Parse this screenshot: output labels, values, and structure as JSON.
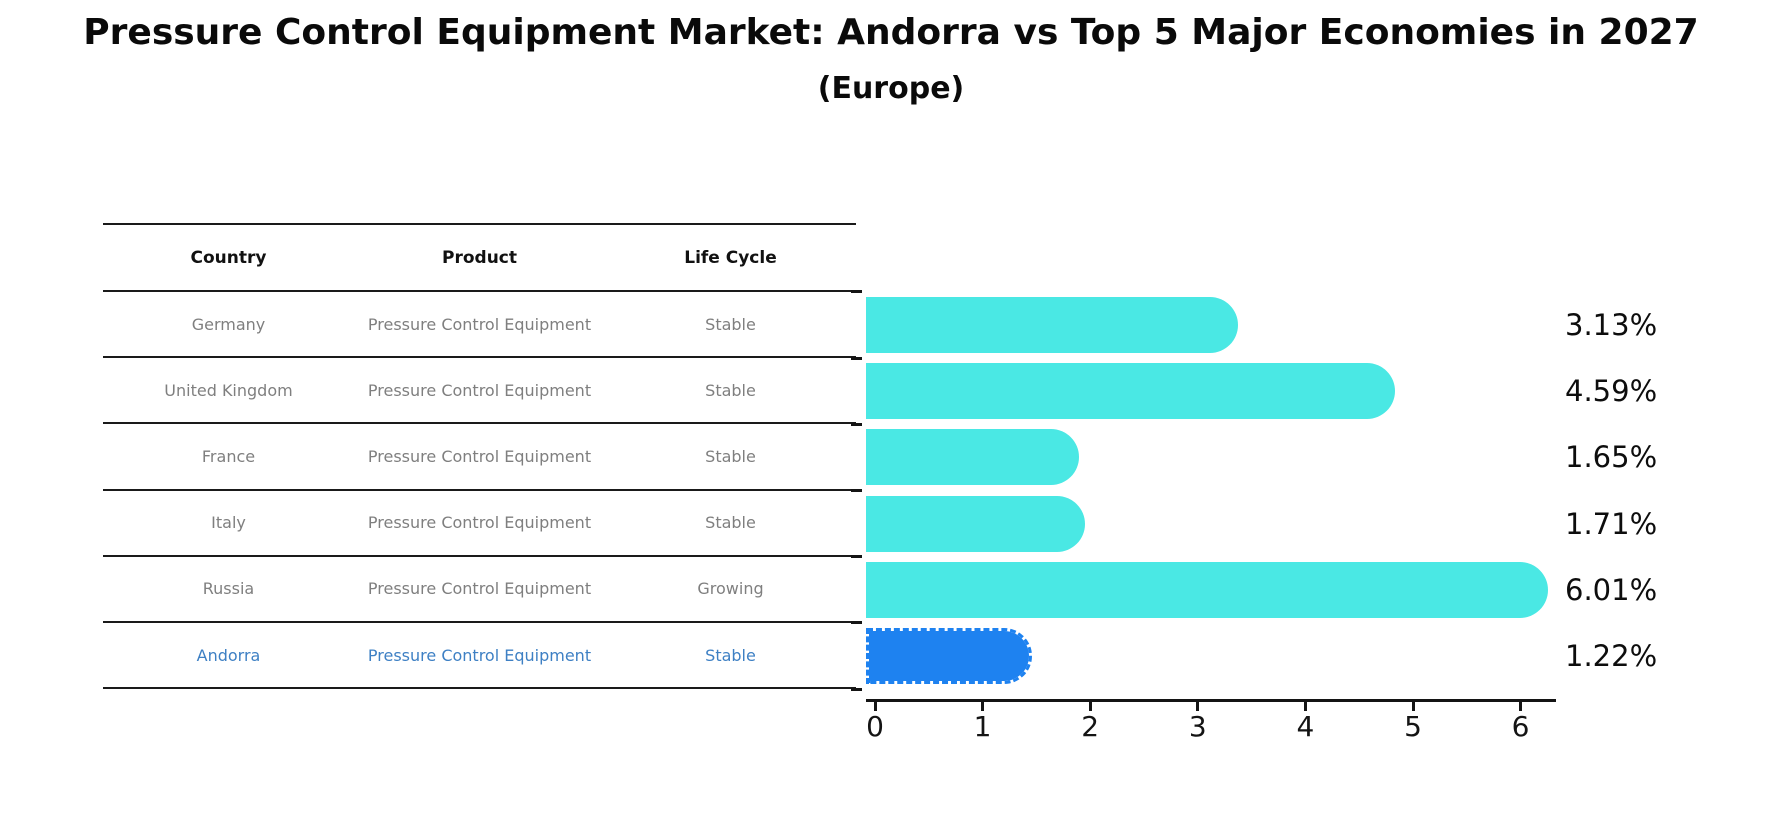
{
  "header": {
    "title": "Pressure Control Equipment Market: Andorra vs Top 5 Major Economies in 2027",
    "subtitle": "(Europe)"
  },
  "table": {
    "columns": [
      "Country",
      "Product",
      "Life Cycle"
    ],
    "rows": [
      {
        "country": "Germany",
        "product": "Pressure Control Equipment",
        "life_cycle": "Stable",
        "highlight": false
      },
      {
        "country": "United Kingdom",
        "product": "Pressure Control Equipment",
        "life_cycle": "Stable",
        "highlight": false
      },
      {
        "country": "France",
        "product": "Pressure Control Equipment",
        "life_cycle": "Stable",
        "highlight": false
      },
      {
        "country": "Italy",
        "product": "Pressure Control Equipment",
        "life_cycle": "Stable",
        "highlight": false
      },
      {
        "country": "Russia",
        "product": "Pressure Control Equipment",
        "life_cycle": "Growing",
        "highlight": false
      },
      {
        "country": "Andorra",
        "product": "Pressure Control Equipment",
        "life_cycle": "Stable",
        "highlight": true
      }
    ]
  },
  "chart_data": {
    "type": "bar",
    "orientation": "horizontal",
    "title": "Pressure Control Equipment Market: Andorra vs Top 5 Major Economies in 2027 (Europe)",
    "categories": [
      "Germany",
      "United Kingdom",
      "France",
      "Italy",
      "Russia",
      "Andorra"
    ],
    "values": [
      3.13,
      4.59,
      1.65,
      1.71,
      6.01,
      1.22
    ],
    "value_labels": [
      "3.13%",
      "4.59%",
      "1.65%",
      "1.71%",
      "6.01%",
      "1.22%"
    ],
    "x_ticks": [
      "0",
      "1",
      "2",
      "3",
      "4",
      "5",
      "6"
    ],
    "xlim": [
      0,
      6.4
    ],
    "unit": "%",
    "highlight_index": 5,
    "highlight_style": "dashed-border",
    "legend": "none",
    "grid": false,
    "colors": {
      "default_bar": "#4ae8e4",
      "highlight_bar": "#1e82f0",
      "highlight_text": "#3e80c4",
      "cell_text": "#7f7f7f",
      "axis_text": "#141414"
    }
  }
}
